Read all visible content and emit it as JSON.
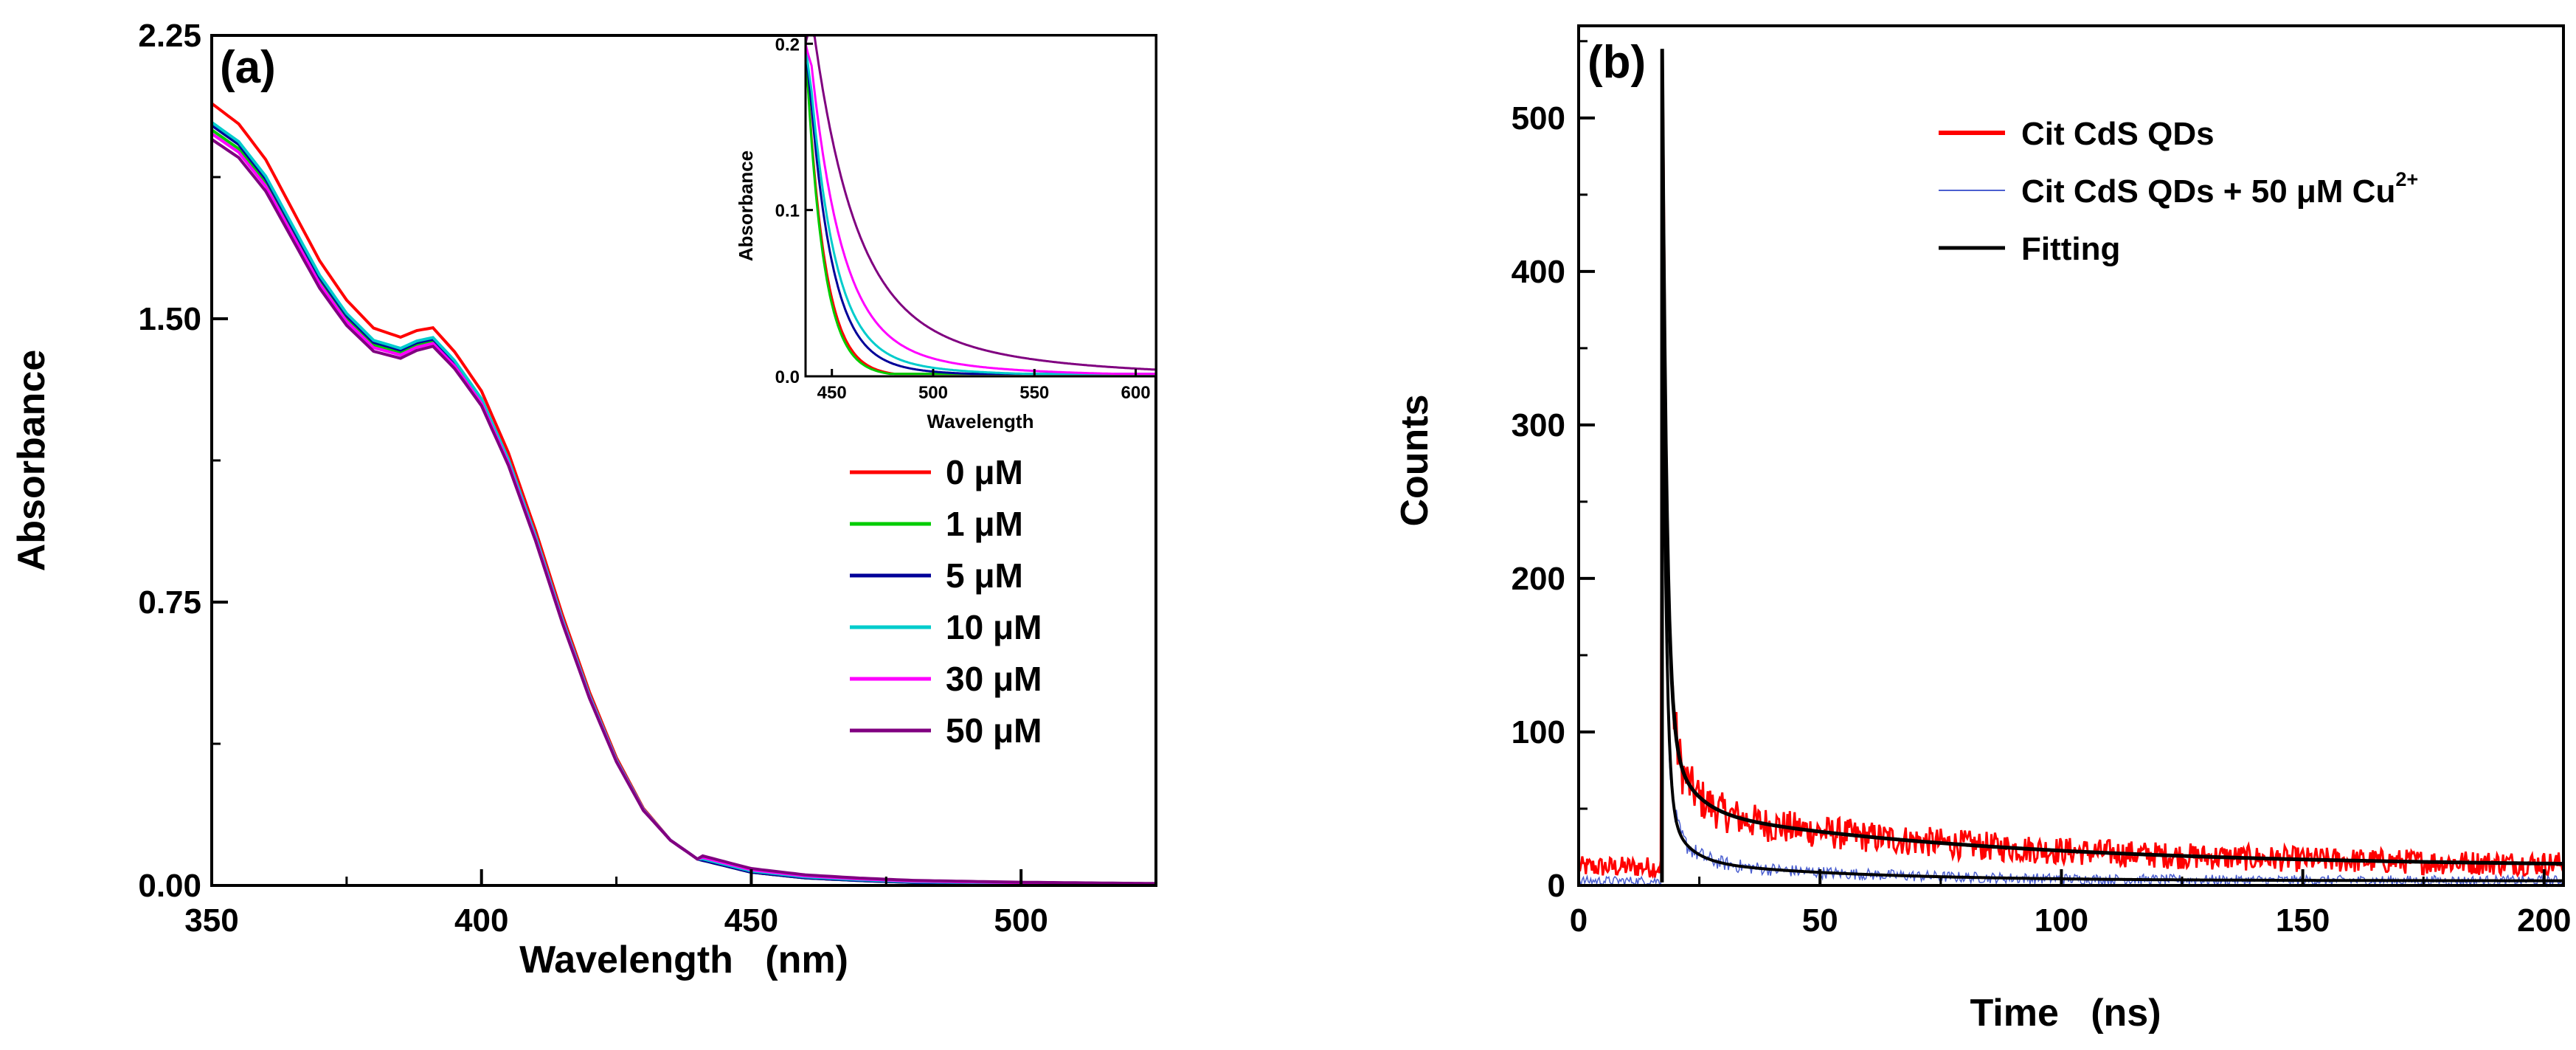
{
  "chart_data": [
    {
      "type": "line",
      "panel_label": "(a)",
      "xlabel": "Wavelength   (nm)",
      "ylabel": "Absorbance",
      "xlim": [
        350,
        525
      ],
      "ylim": [
        0,
        2.25
      ],
      "xticks": [
        "350",
        "400",
        "450",
        "500"
      ],
      "yticks": [
        "0.00",
        "0.75",
        "1.50",
        "2.25"
      ],
      "legend_position": "right-middle",
      "series": [
        {
          "name": "0 μM",
          "color": "#ff0000",
          "offset": 0.07
        },
        {
          "name": "1 μM",
          "color": "#00cc00",
          "offset": 0.0
        },
        {
          "name": "5 μM",
          "color": "#000099",
          "offset": 0.012
        },
        {
          "name": "10 μM",
          "color": "#00cccc",
          "offset": 0.02
        },
        {
          "name": "30 μM",
          "color": "#ff00ff",
          "offset": -0.01
        },
        {
          "name": "50 μM",
          "color": "#800080",
          "offset": -0.025
        }
      ],
      "base_curve": {
        "x": [
          350,
          355,
          360,
          365,
          370,
          375,
          380,
          385,
          388,
          391,
          395,
          400,
          405,
          410,
          415,
          420,
          425,
          430,
          435,
          440,
          450,
          460,
          470,
          480,
          500,
          525
        ],
        "y": [
          2.0,
          1.95,
          1.86,
          1.73,
          1.6,
          1.5,
          1.43,
          1.41,
          1.43,
          1.44,
          1.38,
          1.28,
          1.12,
          0.92,
          0.7,
          0.5,
          0.33,
          0.2,
          0.12,
          0.07,
          0.035,
          0.02,
          0.013,
          0.008,
          0.005,
          0.003
        ]
      },
      "inset": {
        "xlabel": "Wavelength",
        "ylabel": "Absorbance",
        "xlim": [
          437,
          610
        ],
        "ylim": [
          0,
          0.205
        ],
        "xticks": [
          "450",
          "500",
          "550",
          "600"
        ],
        "yticks": [
          "0.0",
          "0.1",
          "0.2"
        ]
      }
    },
    {
      "type": "line",
      "panel_label": "(b)",
      "xlabel": "Time   (ns)",
      "ylabel": "Counts",
      "xlim": [
        0,
        204
      ],
      "ylim": [
        0,
        560
      ],
      "xticks": [
        "0",
        "50",
        "100",
        "150",
        "200"
      ],
      "yticks": [
        "0",
        "100",
        "200",
        "300",
        "400",
        "500"
      ],
      "legend_position": "top-right",
      "series": [
        {
          "name": "Cit CdS QDs",
          "color": "#ff0000",
          "peak": 500,
          "background": 12
        },
        {
          "name": "Cit CdS QDs + 50 μM Cu",
          "superscript": "2+",
          "color": "#4b5fd0",
          "peak": 470,
          "background": 3
        },
        {
          "name": "Fitting",
          "color": "#000000"
        }
      ],
      "excitation_time_ns": 17.3
    }
  ]
}
